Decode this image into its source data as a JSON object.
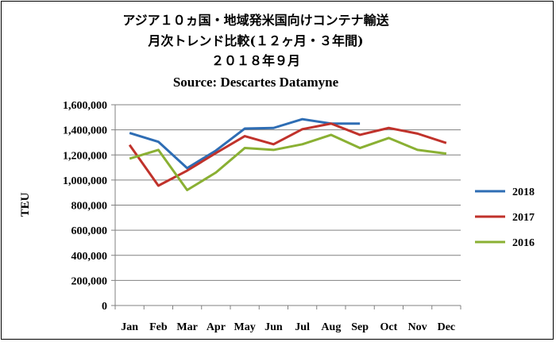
{
  "chart_data": {
    "type": "line",
    "title_lines": [
      "アジア１０ヵ国・地域発米国向けコンテナ輸送",
      "月次トレンド比較(１２ヶ月・３年間)",
      "２０１８年９月"
    ],
    "source": "Source: Descartes Datamyne",
    "ylabel": "TEU",
    "xlabel": "",
    "categories": [
      "Jan",
      "Feb",
      "Mar",
      "Apr",
      "May",
      "Jun",
      "Jul",
      "Aug",
      "Sep",
      "Oct",
      "Nov",
      "Dec"
    ],
    "ylim": [
      0,
      1600000
    ],
    "yticks": [
      0,
      200000,
      400000,
      600000,
      800000,
      1000000,
      1200000,
      1400000,
      1600000
    ],
    "ytick_labels": [
      "0",
      "200,000",
      "400,000",
      "600,000",
      "800,000",
      "1,000,000",
      "1,200,000",
      "1,400,000",
      "1,600,000"
    ],
    "grid": "horizontal",
    "legend_position": "right",
    "series": [
      {
        "name": "2018",
        "color": "#2E6DB4",
        "values": [
          1375000,
          1305000,
          1095000,
          1235000,
          1410000,
          1415000,
          1485000,
          1450000,
          1450000,
          null,
          null,
          null
        ]
      },
      {
        "name": "2017",
        "color": "#C0322B",
        "values": [
          1280000,
          955000,
          1075000,
          1215000,
          1350000,
          1285000,
          1405000,
          1450000,
          1360000,
          1415000,
          1370000,
          1295000
        ]
      },
      {
        "name": "2016",
        "color": "#8AB033",
        "values": [
          1170000,
          1240000,
          920000,
          1060000,
          1255000,
          1240000,
          1285000,
          1360000,
          1255000,
          1335000,
          1240000,
          1210000
        ]
      }
    ]
  }
}
